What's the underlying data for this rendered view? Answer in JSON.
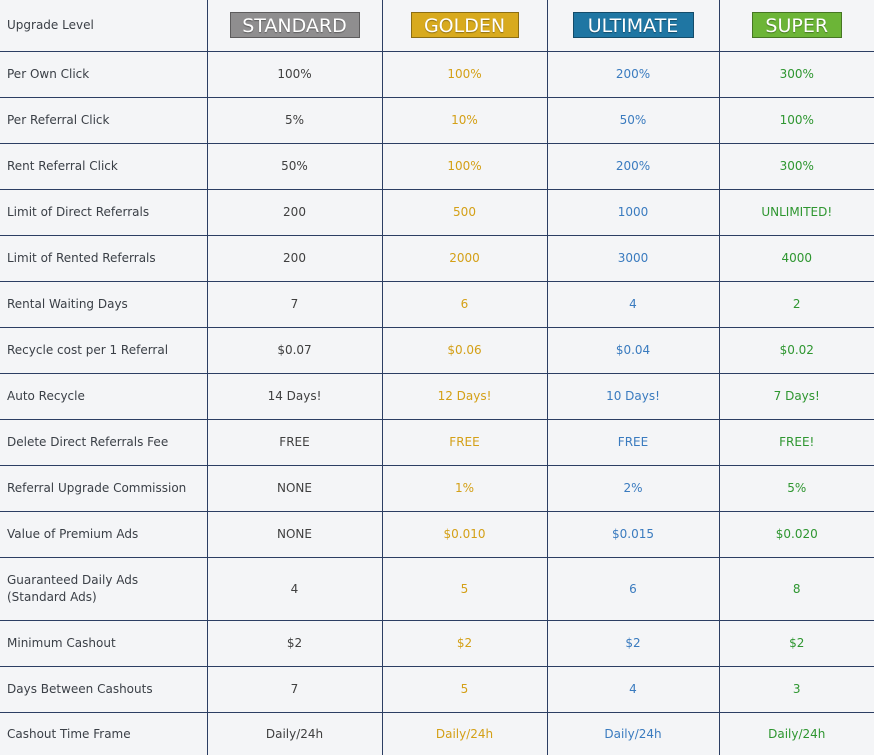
{
  "header": {
    "row_label": "Upgrade Level",
    "plans": [
      "STANDARD",
      "GOLDEN",
      "ULTIMATE",
      "SUPER"
    ]
  },
  "colors": {
    "standard_text": "#404040",
    "golden_text": "#d4a017",
    "ultimate_text": "#3a7bbf",
    "super_text": "#2e9630",
    "standard_button": "#8f8e8f",
    "golden_button": "#d8aa1e",
    "ultimate_button": "#1f76a3",
    "super_button": "#6cb537",
    "grid_line": "#2c3e63",
    "background": "#f4f5f7"
  },
  "rows": [
    {
      "label": "Per Own Click",
      "values": [
        "100%",
        "100%",
        "200%",
        "300%"
      ]
    },
    {
      "label": "Per Referral Click",
      "values": [
        "5%",
        "10%",
        "50%",
        "100%"
      ]
    },
    {
      "label": "Rent Referral Click",
      "values": [
        "50%",
        "100%",
        "200%",
        "300%"
      ]
    },
    {
      "label": "Limit of Direct Referrals",
      "values": [
        "200",
        "500",
        "1000",
        "UNLIMITED!"
      ]
    },
    {
      "label": "Limit of Rented Referrals",
      "values": [
        "200",
        "2000",
        "3000",
        "4000"
      ]
    },
    {
      "label": "Rental Waiting Days",
      "values": [
        "7",
        "6",
        "4",
        "2"
      ]
    },
    {
      "label": "Recycle cost per 1 Referral",
      "values": [
        "$0.07",
        "$0.06",
        "$0.04",
        "$0.02"
      ]
    },
    {
      "label": "Auto Recycle",
      "values": [
        "14 Days!",
        "12 Days!",
        "10 Days!",
        "7 Days!"
      ]
    },
    {
      "label": "Delete Direct Referrals Fee",
      "values": [
        "FREE",
        "FREE",
        "FREE",
        "FREE!"
      ]
    },
    {
      "label": "Referral Upgrade Commission",
      "values": [
        "NONE",
        "1%",
        "2%",
        "5%"
      ]
    },
    {
      "label": "Value of Premium Ads",
      "values": [
        "NONE",
        "$0.010",
        "$0.015",
        "$0.020"
      ]
    },
    {
      "label": "Guaranteed Daily Ads (Standard Ads)",
      "values": [
        "4",
        "5",
        "6",
        "8"
      ]
    },
    {
      "label": "Minimum Cashout",
      "values": [
        "$2",
        "$2",
        "$2",
        "$2"
      ]
    },
    {
      "label": "Days Between Cashouts",
      "values": [
        "7",
        "5",
        "4",
        "3"
      ]
    },
    {
      "label": "Cashout Time Frame",
      "values": [
        "Daily/24h",
        "Daily/24h",
        "Daily/24h",
        "Daily/24h"
      ]
    }
  ]
}
